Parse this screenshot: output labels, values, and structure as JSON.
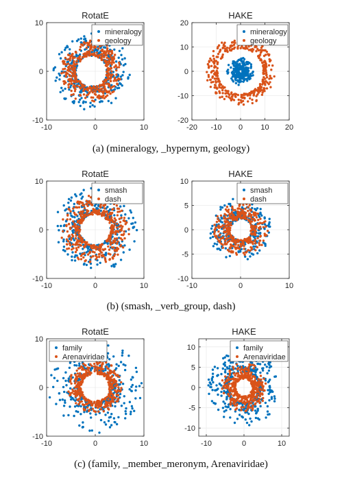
{
  "colors": {
    "blue": "#0072BD",
    "orange": "#D95319"
  },
  "chart_data": [
    {
      "type": "scatter",
      "title": "RotatE",
      "xlim": [
        -10,
        10
      ],
      "ylim": [
        -10,
        10
      ],
      "xticks": [
        "-10",
        "0",
        "10"
      ],
      "yticks": [
        "10",
        "0",
        "-10"
      ],
      "legend_position": "top-right",
      "grid": true,
      "series": [
        {
          "name": "mineralogy",
          "color": "#0072BD",
          "shape": "ring",
          "center": [
            -0.8,
            0
          ],
          "inner_radius": 3.3,
          "outer_radius": 8.0,
          "points": 380
        },
        {
          "name": "geology",
          "color": "#D95319",
          "shape": "ring",
          "center": [
            -0.8,
            0
          ],
          "inner_radius": 3.3,
          "outer_radius": 6.3,
          "points": 420
        }
      ]
    },
    {
      "type": "scatter",
      "title": "HAKE",
      "xlim": [
        -20,
        20
      ],
      "ylim": [
        -20,
        20
      ],
      "xticks": [
        "-20",
        "-10",
        "0",
        "10",
        "20"
      ],
      "yticks": [
        "20",
        "10",
        "0",
        "-10",
        "-20"
      ],
      "legend_position": "top-right",
      "grid": true,
      "series": [
        {
          "name": "mineralogy",
          "color": "#0072BD",
          "shape": "ring",
          "center": [
            0,
            0
          ],
          "inner_radius": 1.0,
          "outer_radius": 5.5,
          "points": 320
        },
        {
          "name": "geology",
          "color": "#D95319",
          "shape": "ring",
          "center": [
            0,
            0
          ],
          "inner_radius": 9.5,
          "outer_radius": 14.0,
          "points": 380
        }
      ]
    },
    {
      "type": "scatter",
      "title": "RotatE",
      "xlim": [
        -10,
        10
      ],
      "ylim": [
        -10,
        10
      ],
      "xticks": [
        "-10",
        "0",
        "10"
      ],
      "yticks": [
        "10",
        "0",
        "-10"
      ],
      "legend_position": "top-right",
      "grid": true,
      "series": [
        {
          "name": "smash",
          "color": "#0072BD",
          "shape": "ring",
          "center": [
            0,
            0
          ],
          "inner_radius": 3.3,
          "outer_radius": 8.5,
          "points": 380
        },
        {
          "name": "dash",
          "color": "#D95319",
          "shape": "ring",
          "center": [
            0,
            0
          ],
          "inner_radius": 3.3,
          "outer_radius": 7.0,
          "points": 420
        }
      ]
    },
    {
      "type": "scatter",
      "title": "HAKE",
      "xlim": [
        -10,
        10
      ],
      "ylim": [
        -10,
        10
      ],
      "xticks": [
        "-10",
        "0",
        "10"
      ],
      "yticks": [
        "10",
        "5",
        "0",
        "-5",
        "-10"
      ],
      "legend_position": "top-right",
      "grid": true,
      "series": [
        {
          "name": "smash",
          "color": "#0072BD",
          "shape": "ring",
          "center": [
            0,
            0
          ],
          "inner_radius": 2.3,
          "outer_radius": 6.5,
          "points": 330
        },
        {
          "name": "dash",
          "color": "#D95319",
          "shape": "ring",
          "center": [
            0,
            0
          ],
          "inner_radius": 2.3,
          "outer_radius": 5.5,
          "points": 380
        }
      ]
    },
    {
      "type": "scatter",
      "title": "RotatE",
      "xlim": [
        -10,
        10
      ],
      "ylim": [
        -10,
        10
      ],
      "xticks": [
        "-10",
        "0",
        "10"
      ],
      "yticks": [
        "10",
        "0",
        "-10"
      ],
      "legend_position": "top-left",
      "grid": true,
      "series": [
        {
          "name": "family",
          "color": "#0072BD",
          "shape": "ring",
          "center": [
            0,
            0
          ],
          "inner_radius": 3.3,
          "outer_radius": 9.5,
          "points": 380
        },
        {
          "name": "Arenaviridae",
          "color": "#D95319",
          "shape": "ring",
          "center": [
            0,
            0
          ],
          "inner_radius": 3.0,
          "outer_radius": 5.5,
          "points": 420
        }
      ]
    },
    {
      "type": "scatter",
      "title": "HAKE",
      "xlim": [
        -12,
        12
      ],
      "ylim": [
        -12,
        12
      ],
      "xticks": [
        "-10",
        "0",
        "10"
      ],
      "yticks": [
        "10",
        "5",
        "0",
        "-5",
        "-10"
      ],
      "legend_position": "top-right",
      "grid": true,
      "series": [
        {
          "name": "family",
          "color": "#0072BD",
          "shape": "ring",
          "center": [
            0,
            0
          ],
          "inner_radius": 4.0,
          "outer_radius": 9.5,
          "points": 420
        },
        {
          "name": "Arenaviridae",
          "color": "#D95319",
          "shape": "ring",
          "center": [
            0,
            0
          ],
          "inner_radius": 2.3,
          "outer_radius": 6.0,
          "points": 420
        }
      ]
    }
  ],
  "captions": [
    "(a) (mineralogy, _hypernym, geology)",
    "(b) (smash, _verb_group, dash)",
    "(c) (family, _member_meronym, Arenaviridae)"
  ]
}
